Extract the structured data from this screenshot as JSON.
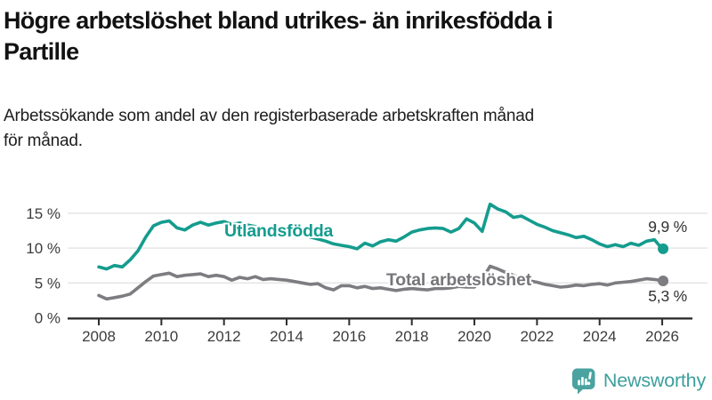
{
  "header": {
    "title": "Högre arbetslöshet bland utrikes- än inrikesfödda i Partille",
    "title_lines": [
      "Högre arbetslöshet bland utrikes- än inrikesfödda i",
      "Partille"
    ],
    "subtitle": "Arbetssökande som andel av den registerbaserade arbetskraften månad för månad.",
    "subtitle_lines": [
      "Arbetssökande som andel av den registerbaserade arbetskraften månad",
      "för månad."
    ]
  },
  "chart_data": {
    "type": "line",
    "title": "Högre arbetslöshet bland utrikes- än inrikesfödda i Partille",
    "xlabel": "",
    "ylabel": "Arbetssökande som andel av den registerbaserade arbetskraften",
    "grid": "horizontal-only",
    "x_axis": {
      "tick_years": [
        2008,
        2010,
        2012,
        2014,
        2016,
        2018,
        2020,
        2022,
        2024,
        2026
      ],
      "range": [
        2007.0,
        2027.0
      ]
    },
    "y_axis": {
      "tick_values": [
        0,
        5,
        10,
        15
      ],
      "tick_labels": [
        "0 %",
        "5 %",
        "10 %",
        "15 %"
      ],
      "range": [
        0,
        17.5
      ]
    },
    "x": [
      2008.0,
      2008.25,
      2008.5,
      2008.75,
      2009.0,
      2009.25,
      2009.5,
      2009.75,
      2010.0,
      2010.25,
      2010.5,
      2010.75,
      2011.0,
      2011.25,
      2011.5,
      2011.75,
      2012.0,
      2012.25,
      2012.5,
      2012.75,
      2013.0,
      2013.25,
      2013.5,
      2013.75,
      2014.0,
      2014.25,
      2014.5,
      2014.75,
      2015.0,
      2015.25,
      2015.5,
      2015.75,
      2016.0,
      2016.25,
      2016.5,
      2016.75,
      2017.0,
      2017.25,
      2017.5,
      2017.75,
      2018.0,
      2018.25,
      2018.5,
      2018.75,
      2019.0,
      2019.25,
      2019.5,
      2019.75,
      2020.0,
      2020.25,
      2020.5,
      2020.75,
      2021.0,
      2021.25,
      2021.5,
      2021.75,
      2022.0,
      2022.25,
      2022.5,
      2022.75,
      2023.0,
      2023.25,
      2023.5,
      2023.75,
      2024.0,
      2024.25,
      2024.5,
      2024.75,
      2025.0,
      2025.25,
      2025.5,
      2025.75,
      2026.0
    ],
    "series": [
      {
        "name": "Utlandsfödda",
        "color": "#149c8e",
        "end_label": "9,9 %",
        "end_value": 9.9,
        "values": [
          7.3,
          7.0,
          7.5,
          7.3,
          8.3,
          9.6,
          11.6,
          13.2,
          13.7,
          13.9,
          12.9,
          12.6,
          13.3,
          13.7,
          13.3,
          13.6,
          13.8,
          13.4,
          13.6,
          13.3,
          13.1,
          12.9,
          12.7,
          12.5,
          12.3,
          12.1,
          11.9,
          11.6,
          11.3,
          11.0,
          10.6,
          10.4,
          10.2,
          9.9,
          10.7,
          10.3,
          10.9,
          11.2,
          11.0,
          11.6,
          12.3,
          12.6,
          12.8,
          12.9,
          12.8,
          12.3,
          12.8,
          14.2,
          13.6,
          12.4,
          16.3,
          15.6,
          15.2,
          14.4,
          14.6,
          14.0,
          13.4,
          13.0,
          12.5,
          12.2,
          11.9,
          11.5,
          11.7,
          11.2,
          10.6,
          10.2,
          10.5,
          10.2,
          10.7,
          10.4,
          11.0,
          11.2,
          9.9
        ]
      },
      {
        "name": "Total arbetslöshet",
        "color": "#7d7d81",
        "end_label": "5,3 %",
        "end_value": 5.3,
        "values": [
          3.2,
          2.7,
          2.9,
          3.1,
          3.4,
          4.3,
          5.2,
          6.0,
          6.2,
          6.4,
          5.9,
          6.1,
          6.2,
          6.3,
          5.9,
          6.1,
          5.9,
          5.4,
          5.8,
          5.6,
          5.9,
          5.5,
          5.6,
          5.5,
          5.4,
          5.2,
          5.0,
          4.8,
          4.9,
          4.3,
          4.0,
          4.6,
          4.6,
          4.3,
          4.5,
          4.2,
          4.3,
          4.1,
          3.9,
          4.1,
          4.2,
          4.1,
          4.0,
          4.2,
          4.2,
          4.3,
          4.5,
          4.4,
          4.4,
          5.5,
          7.4,
          7.0,
          6.5,
          6.1,
          5.7,
          5.3,
          5.1,
          4.8,
          4.6,
          4.4,
          4.5,
          4.7,
          4.6,
          4.8,
          4.9,
          4.7,
          5.0,
          5.1,
          5.2,
          5.4,
          5.6,
          5.5,
          5.3
        ]
      }
    ],
    "legend_position": "inline-labels",
    "colors": {
      "axis_text": "#3c3c3c",
      "axis_line": "#2e2e2e",
      "gridline": "#e3e3e3"
    }
  },
  "footer": {
    "brand": "Newsworthy",
    "logo_icon": "bar-chart-speech-bubble",
    "brand_color": "#3d9f9c",
    "icon_color": "#4aa3a0"
  }
}
